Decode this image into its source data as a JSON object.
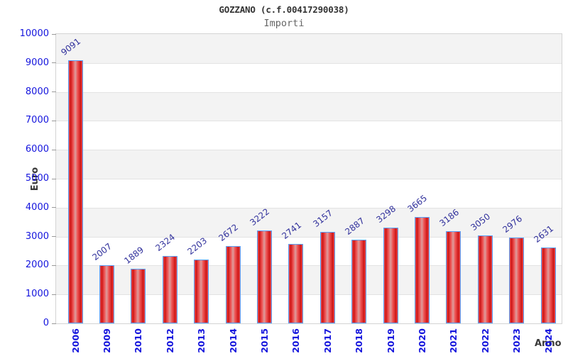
{
  "header": {
    "title": "GOZZANO (c.f.00417290038)",
    "subtitle": "Importi"
  },
  "chart_data": {
    "type": "bar",
    "title": "GOZZANO (c.f.00417290038)",
    "subtitle": "Importi",
    "xlabel": "Anno",
    "ylabel": "Euro",
    "categories": [
      "2006",
      "2009",
      "2010",
      "2012",
      "2013",
      "2014",
      "2015",
      "2016",
      "2017",
      "2018",
      "2019",
      "2020",
      "2021",
      "2022",
      "2023",
      "2024"
    ],
    "values": [
      9091,
      2007,
      1889,
      2324,
      2203,
      2672,
      3222,
      2741,
      3157,
      2887,
      3298,
      3665,
      3186,
      3050,
      2976,
      2631
    ],
    "ylim": [
      0,
      10000
    ],
    "ytick_step": 1000,
    "legend": "none",
    "grid": "horizontal-bands",
    "colors": {
      "bar_fill_dark": "#cd1414",
      "bar_fill_mid": "#ef5555",
      "bar_fill_highlight": "#dd9c9c",
      "bar_border": "#58a0f8",
      "axis_tick_label": "#1414dd",
      "value_label": "#31319c",
      "band_gray": "#f3f3f3",
      "band_white": "#ffffff",
      "title_text": "#333333",
      "subtitle_text": "#666666",
      "axis_title_text": "#3a3a3a"
    }
  }
}
